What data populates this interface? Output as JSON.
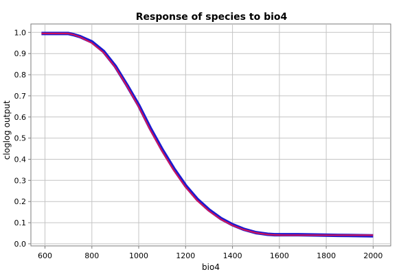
{
  "chart_data": {
    "type": "line",
    "title": "Response of species to bio4",
    "xlabel": "bio4",
    "ylabel": "cloglog output",
    "xlim": [
      540,
      2075
    ],
    "ylim": [
      -0.01,
      1.04
    ],
    "xticks": [
      600,
      800,
      1000,
      1200,
      1400,
      1600,
      1800,
      2000
    ],
    "yticks": [
      0.0,
      0.1,
      0.2,
      0.3,
      0.4,
      0.5,
      0.6,
      0.7,
      0.8,
      0.9,
      1.0
    ],
    "ytick_labels": [
      "0.0",
      "0.1",
      "0.2",
      "0.3",
      "0.4",
      "0.5",
      "0.6",
      "0.7",
      "0.8",
      "0.9",
      "1.0"
    ],
    "grid": true,
    "series": [
      {
        "color": "#1a1ad0",
        "x": [
          585,
          650,
          700,
          720,
          750,
          800,
          850,
          900,
          950,
          1000,
          1050,
          1100,
          1150,
          1200,
          1250,
          1300,
          1350,
          1400,
          1450,
          1500,
          1550,
          1580,
          1620,
          1680,
          1750,
          1850,
          2000
        ],
        "y": [
          0.995,
          0.995,
          0.995,
          0.99,
          0.98,
          0.955,
          0.91,
          0.84,
          0.75,
          0.655,
          0.545,
          0.445,
          0.355,
          0.275,
          0.21,
          0.16,
          0.12,
          0.09,
          0.068,
          0.053,
          0.045,
          0.043,
          0.043,
          0.043,
          0.042,
          0.04,
          0.038
        ]
      },
      {
        "color": "#d0145a",
        "x": [
          585,
          650,
          700,
          720,
          750,
          800,
          850,
          900,
          950,
          1000,
          1050,
          1100,
          1150,
          1200,
          1250,
          1300,
          1350,
          1400,
          1450,
          1500,
          1550,
          1580,
          1620,
          1680,
          1750,
          1850,
          2000
        ],
        "y": [
          0.995,
          0.995,
          0.995,
          0.99,
          0.978,
          0.95,
          0.905,
          0.835,
          0.745,
          0.648,
          0.537,
          0.437,
          0.347,
          0.268,
          0.204,
          0.155,
          0.116,
          0.087,
          0.066,
          0.052,
          0.044,
          0.042,
          0.041,
          0.041,
          0.041,
          0.041,
          0.041
        ]
      }
    ]
  }
}
